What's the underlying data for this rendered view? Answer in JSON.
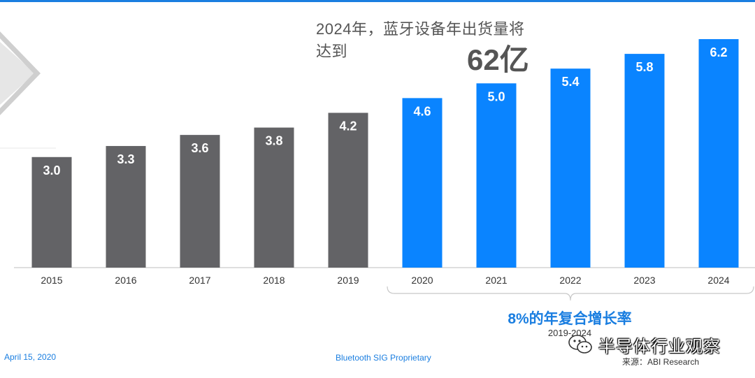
{
  "headline": "2024年，蓝牙设备年出货量将达到",
  "big_figure": "62亿",
  "cagr": {
    "label": "8%的年复合增长率",
    "range": "2019-2024"
  },
  "footer": {
    "date": "April 15, 2020",
    "proprietary": "Bluetooth SIG Proprietary"
  },
  "source": "来源：ABI Research",
  "watermark": {
    "text": "半导体行业观察",
    "icon": "wechat-icon"
  },
  "colors": {
    "historical": "#636366",
    "forecast": "#0a84ff",
    "accent": "#1a7ee0"
  },
  "chart_data": {
    "type": "bar",
    "categories": [
      "2015",
      "2016",
      "2017",
      "2018",
      "2019",
      "2020",
      "2021",
      "2022",
      "2023",
      "2024"
    ],
    "values": [
      3.0,
      3.3,
      3.6,
      3.8,
      4.2,
      4.6,
      5.0,
      5.4,
      5.8,
      6.2
    ],
    "data_labels": [
      "3.0",
      "3.3",
      "3.6",
      "3.8",
      "4.2",
      "4.6",
      "5.0",
      "5.4",
      "5.8",
      "6.2"
    ],
    "forecast_from_index": 5,
    "title": "",
    "xlabel": "",
    "ylabel": "",
    "ylim": [
      0,
      6.2
    ],
    "grid": false,
    "legend": "none"
  }
}
